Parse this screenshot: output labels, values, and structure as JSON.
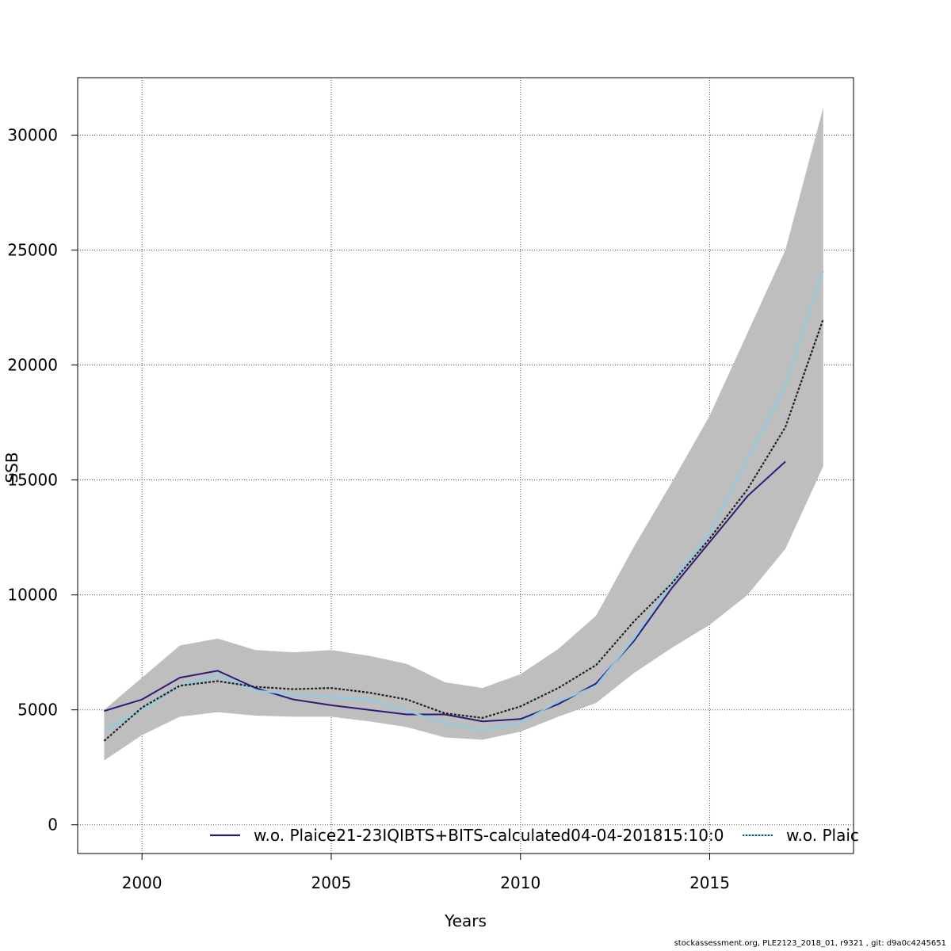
{
  "chart_data": {
    "type": "line",
    "title": "",
    "xlabel": "Years",
    "ylabel": "SSB",
    "xlim": [
      1998.3,
      2018.8
    ],
    "ylim": [
      -1250,
      32500
    ],
    "xticks": [
      2000,
      2005,
      2010,
      2015
    ],
    "yticks": [
      0,
      5000,
      10000,
      15000,
      20000,
      25000,
      30000
    ],
    "grid": true,
    "legend_position": "bottom",
    "x": [
      1999,
      2000,
      2001,
      2002,
      2003,
      2004,
      2005,
      2006,
      2007,
      2008,
      2009,
      2010,
      2011,
      2012,
      2013,
      2014,
      2015,
      2016,
      2017,
      2018
    ],
    "confidence_band": {
      "color": "#bebebe",
      "lower": [
        2800,
        3900,
        4700,
        4900,
        4750,
        4700,
        4700,
        4500,
        4250,
        3800,
        3700,
        4050,
        4700,
        5300,
        6600,
        7700,
        8700,
        10000,
        12000,
        15600
      ],
      "upper": [
        5000,
        6400,
        7800,
        8100,
        7600,
        7500,
        7600,
        7350,
        7000,
        6200,
        5950,
        6550,
        7650,
        9100,
        12100,
        14900,
        17800,
        21400,
        25000,
        31200
      ]
    },
    "series": [
      {
        "name": "w.o. Plaice21-23IQIBTS+BITS-calculated04-04-201815:10:0",
        "color": "#2e1a78",
        "values": [
          4950,
          5450,
          6400,
          6700,
          5950,
          5450,
          5200,
          5000,
          4800,
          4800,
          4500,
          4600,
          5250,
          6150,
          8000,
          10300,
          12300,
          14300,
          15800,
          null
        ]
      },
      {
        "name": "w.o. Plaic",
        "color": "#87ceeb",
        "values": [
          4100,
          5000,
          6050,
          6500,
          5850,
          5650,
          5550,
          5450,
          4950,
          4450,
          4100,
          4450,
          5350,
          6050,
          8100,
          10550,
          12700,
          15900,
          19100,
          24100
        ]
      },
      {
        "name": "",
        "color": "#222222",
        "dashed": true,
        "values": [
          3650,
          5100,
          6050,
          6250,
          6000,
          5900,
          5950,
          5750,
          5450,
          4850,
          4650,
          5150,
          5950,
          6950,
          8850,
          10500,
          12450,
          14600,
          17300,
          22000
        ]
      }
    ]
  },
  "footer": "stockassessment.org, PLE2123_2018_01, r9321 , git: d9a0c4245651"
}
